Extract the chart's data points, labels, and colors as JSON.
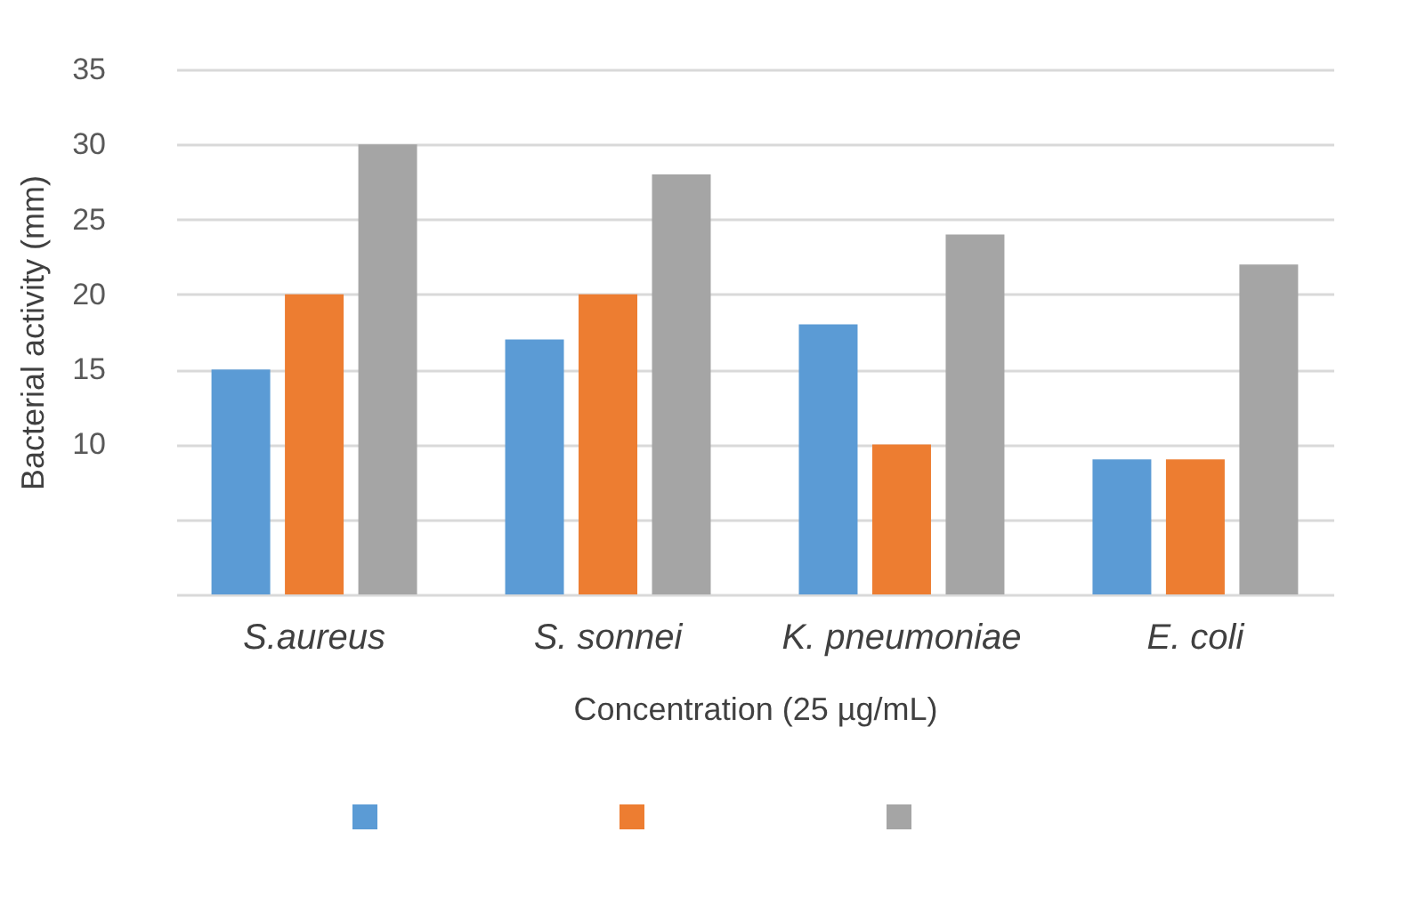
{
  "chart_data": {
    "type": "bar",
    "xlabel": "Concentration (25 µg/mL)",
    "ylabel": "Bacterial activity (mm)",
    "categories": [
      "S.aureus",
      "S. sonnei",
      "K. pneumoniae",
      "E. coli"
    ],
    "series": [
      {
        "color": "#5b9bd5",
        "values": [
          15,
          17,
          18,
          9
        ]
      },
      {
        "color": "#ed7d31",
        "values": [
          20,
          20,
          10,
          9
        ]
      },
      {
        "color": "#a5a5a5",
        "values": [
          30,
          28,
          24,
          22
        ]
      }
    ],
    "ylim": [
      0,
      35
    ],
    "yticks": [
      {
        "value": 0,
        "label": null
      },
      {
        "value": 5,
        "label": null
      },
      10,
      15,
      20,
      25,
      30,
      35
    ],
    "grid": "y"
  }
}
